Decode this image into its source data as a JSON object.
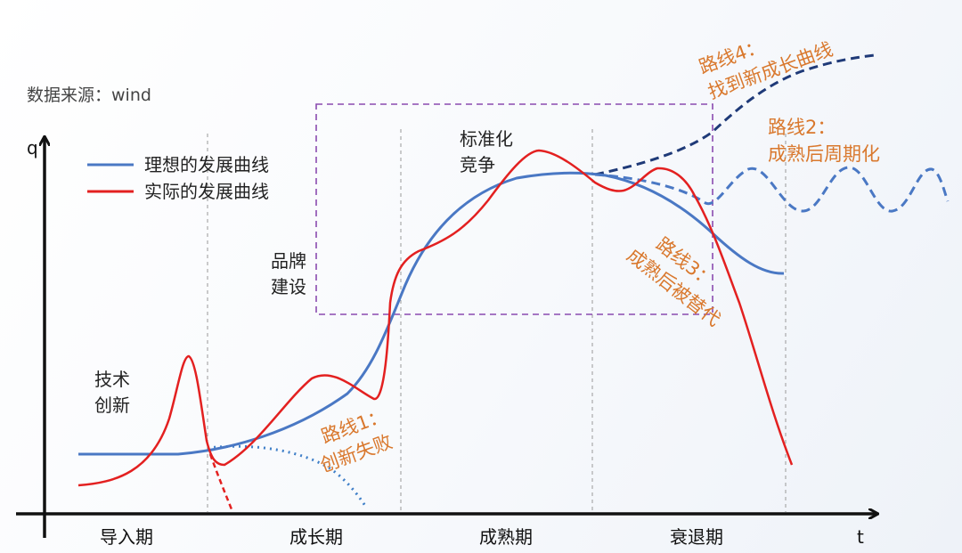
{
  "source": "数据来源：wind",
  "axes": {
    "y_label": "q",
    "x_label": "t"
  },
  "legend": [
    {
      "label": "理想的发展曲线",
      "color": "#4a78c4"
    },
    {
      "label": "实际的发展曲线",
      "color": "#e32020"
    }
  ],
  "stages": [
    {
      "line1": "技术",
      "line2": "创新"
    },
    {
      "line1": "品牌",
      "line2": "建设"
    },
    {
      "line1": "标准化",
      "line2": "竞争"
    }
  ],
  "phases": [
    "导入期",
    "成长期",
    "成熟期",
    "衰退期"
  ],
  "routes": [
    {
      "line1": "路线1：",
      "line2": "创新失败",
      "color": "#d9782d"
    },
    {
      "line1": "路线2：",
      "line2": "成熟后周期化",
      "color": "#d9782d"
    },
    {
      "line1": "路线3：",
      "line2": "成熟后被替代",
      "color": "#d9782d"
    },
    {
      "line1": "路线4：",
      "line2": "找到新成长曲线",
      "color": "#d9782d"
    }
  ],
  "colors": {
    "ideal": "#4a78c4",
    "actual": "#e32020",
    "route1": "#3f7fc8",
    "route2": "#4a78c4",
    "route4": "#1f3a78",
    "box": "#8a4bb0"
  }
}
